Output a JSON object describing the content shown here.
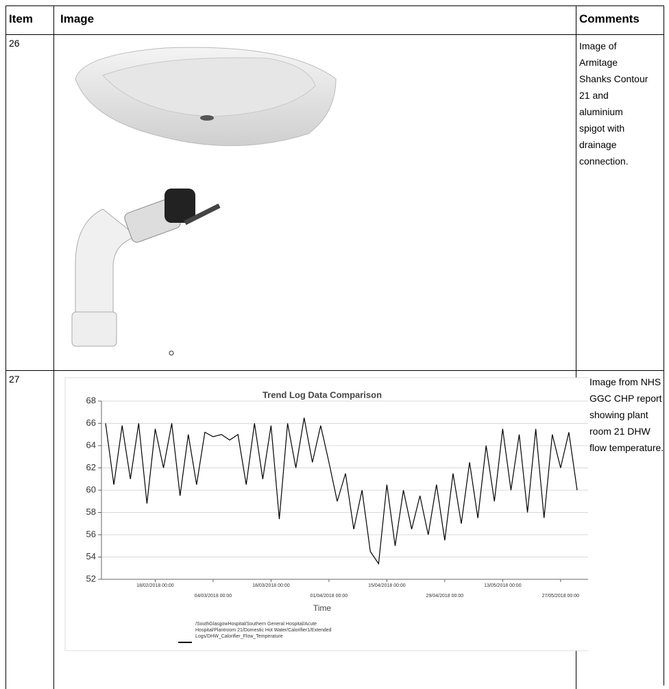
{
  "table": {
    "header": [
      "Item",
      "Image",
      "Comments"
    ],
    "rows": [
      {
        "item": "26",
        "comment": "Image of Armitage Shanks Contour 21 and aluminium spigot with drainage connection."
      },
      {
        "item": "27",
        "comment": "Image from NHS GGC CHP report showing plant room 21 DHW flow temperature.",
        "chart_data": {
          "type": "line",
          "title": "Trend Log Data Comparison",
          "x_label": "Time",
          "xlim": [
            "2018-02-05",
            "2018-06-01"
          ],
          "xticks": [
            {
              "value": "2018-02-18",
              "label": "18/02/2018 00:00"
            },
            {
              "value": "2018-03-04",
              "label": "04/03/2018 00:00"
            },
            {
              "value": "2018-03-18",
              "label": "18/03/2018 00:00"
            },
            {
              "value": "2018-04-01",
              "label": "01/04/2018 00:00"
            },
            {
              "value": "2018-04-15",
              "label": "15/04/2018 00:00"
            },
            {
              "value": "2018-04-29",
              "label": "29/04/2018 00:00"
            },
            {
              "value": "2018-05-13",
              "label": "13/05/2018 00:00"
            },
            {
              "value": "2018-05-27",
              "label": "27/05/2018 00:00"
            }
          ],
          "ylim": [
            52,
            68
          ],
          "yticks": [
            52,
            54,
            56,
            58,
            60,
            62,
            64,
            66,
            68
          ],
          "grid": true,
          "series": [
            {
              "name": "/SouthGlasgowHospital/Southern General Hospital/Acute Hospital/Plantroom 21/Domestic Hot Water/Calorifier1/Extended Logs/DHW_Calorifier_Flow_Temperature",
              "color": "#000000",
              "x": [
                "2018-02-06",
                "2018-02-08",
                "2018-02-10",
                "2018-02-12",
                "2018-02-14",
                "2018-02-16",
                "2018-02-18",
                "2018-02-20",
                "2018-02-22",
                "2018-02-24",
                "2018-02-26",
                "2018-02-28",
                "2018-03-02",
                "2018-03-04",
                "2018-03-06",
                "2018-03-08",
                "2018-03-10",
                "2018-03-12",
                "2018-03-14",
                "2018-03-16",
                "2018-03-18",
                "2018-03-20",
                "2018-03-22",
                "2018-03-24",
                "2018-03-26",
                "2018-03-28",
                "2018-03-30",
                "2018-04-01",
                "2018-04-03",
                "2018-04-05",
                "2018-04-07",
                "2018-04-09",
                "2018-04-11",
                "2018-04-13",
                "2018-04-15",
                "2018-04-17",
                "2018-04-19",
                "2018-04-21",
                "2018-04-23",
                "2018-04-25",
                "2018-04-27",
                "2018-04-29",
                "2018-05-01",
                "2018-05-03",
                "2018-05-05",
                "2018-05-07",
                "2018-05-09",
                "2018-05-11",
                "2018-05-13",
                "2018-05-15",
                "2018-05-17",
                "2018-05-19",
                "2018-05-21",
                "2018-05-23",
                "2018-05-25",
                "2018-05-27",
                "2018-05-29",
                "2018-05-31"
              ],
              "values": [
                66,
                60.5,
                65.8,
                61,
                66,
                58.8,
                65.5,
                62,
                66,
                59.5,
                65,
                60.5,
                65.2,
                64.8,
                65,
                64.5,
                65,
                60.5,
                66,
                61,
                65.8,
                57.4,
                66,
                62,
                66.5,
                62.5,
                65.8,
                62.5,
                59,
                61.5,
                56.5,
                60,
                54.5,
                53.4,
                60.5,
                55,
                60,
                56.5,
                59.5,
                56,
                60.5,
                55.5,
                61.5,
                57,
                62.5,
                57.5,
                64,
                59,
                65.5,
                60,
                65,
                58,
                65.5,
                57.5,
                65,
                62,
                65.2,
                60
              ]
            }
          ]
        }
      }
    ]
  }
}
